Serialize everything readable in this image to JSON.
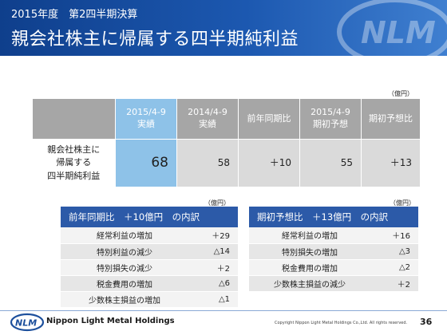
{
  "header": {
    "subtitle": "2015年度　第2四半期決算",
    "title": "親会社株主に帰属する四半期純利益"
  },
  "main_table": {
    "unit": "（億円）",
    "columns": [
      "2015/4-9\n実績",
      "2014/4-9\n実績",
      "前年同期比",
      "2015/4-9\n期初予想",
      "期初予想比"
    ],
    "row_label": "親会社株主に\n帰属する\n四半期純利益",
    "values": [
      "68",
      "58",
      "＋10",
      "55",
      "＋13"
    ]
  },
  "left_breakdown": {
    "unit": "（億円）",
    "title": "前年同期比　＋10億円　の内訳",
    "rows": [
      {
        "item": "経常利益の増加",
        "value": "＋29"
      },
      {
        "item": "特別利益の減少",
        "value": "△14"
      },
      {
        "item": "特別損失の減少",
        "value": "＋2"
      },
      {
        "item": "税金費用の増加",
        "value": "△6"
      },
      {
        "item": "少数株主損益の増加",
        "value": "△1"
      }
    ]
  },
  "right_breakdown": {
    "unit": "（億円）",
    "title": "期初予想比　＋13億円　の内訳",
    "rows": [
      {
        "item": "経常利益の増加",
        "value": "＋16"
      },
      {
        "item": "特別損失の増加",
        "value": "△3"
      },
      {
        "item": "税金費用の増加",
        "value": "△2"
      },
      {
        "item": "少数株主損益の減少",
        "value": "＋2"
      }
    ]
  },
  "footer": {
    "logo_text": "NLM",
    "company": "Nippon Light Metal Holdings",
    "copyright": "Copyright Nippon Light Metal Holdings Co.,Ltd. All rights reserved.",
    "page_number": "36"
  },
  "colors": {
    "header_blue": "#1c58b0",
    "highlight_blue": "#8ec2e8",
    "breakdown_header": "#2c5aa8",
    "table_gray": "#a6a6a6"
  }
}
